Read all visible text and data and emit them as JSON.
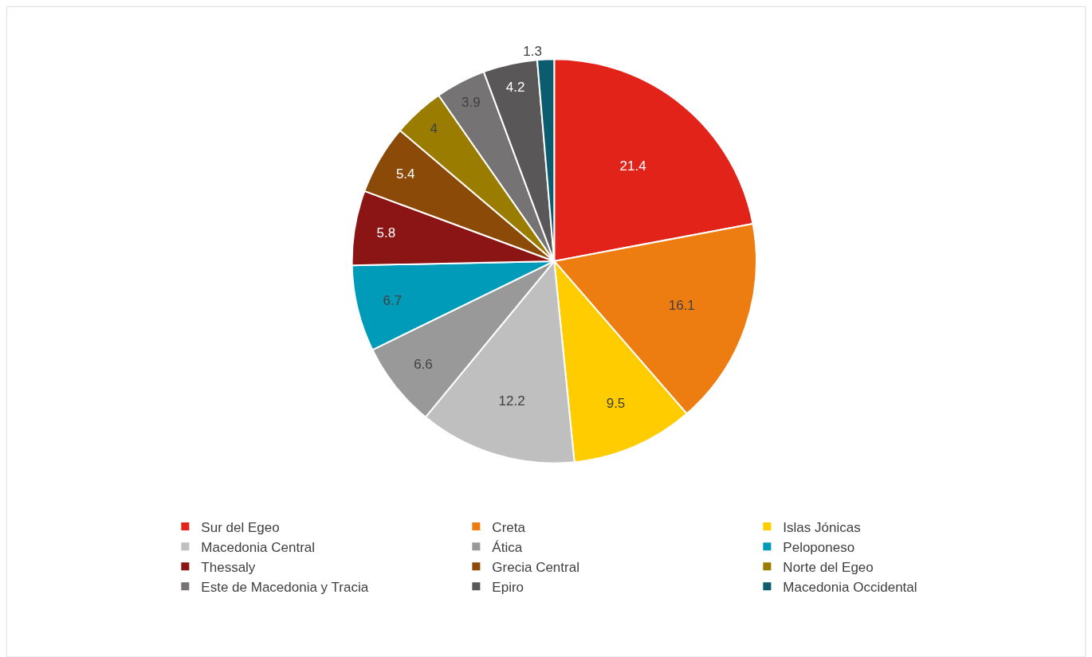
{
  "chart_data": {
    "type": "pie",
    "categories": [
      "Sur del Egeo",
      "Creta",
      "Islas Jónicas",
      "Macedonia Central",
      "Ática",
      "Peloponeso",
      "Thessaly",
      "Grecia Central",
      "Norte del Egeo",
      "Este de Macedonia y Tracia",
      "Epiro",
      "Macedonia Occidental"
    ],
    "values": [
      21.4,
      16.1,
      9.5,
      12.2,
      6.6,
      6.7,
      5.8,
      5.4,
      4,
      3.9,
      4.2,
      1.3
    ],
    "colors": [
      "#e2231a",
      "#ee7d11",
      "#ffcc00",
      "#c0bfbf",
      "#9a999a",
      "#009bb8",
      "#8b1414",
      "#8c4a08",
      "#9a7d00",
      "#767374",
      "#5a5759",
      "#0b5c6e"
    ],
    "data_labels": true,
    "legend": "bottom"
  }
}
